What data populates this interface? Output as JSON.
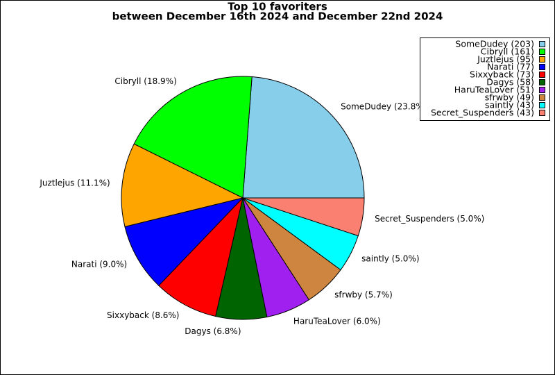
{
  "chart_data": {
    "type": "pie",
    "title": "Top 10 favoriters",
    "subtitle": "between December 16th 2024 and December 22nd 2024",
    "categories": [
      "SomeDudey",
      "Cibryll",
      "Juztlejus",
      "Narati",
      "Sixxyback",
      "Dagys",
      "HaruTeaLover",
      "sfrwby",
      "saintly",
      "Secret_Suspenders"
    ],
    "values": [
      203,
      161,
      95,
      77,
      73,
      58,
      51,
      49,
      43,
      43
    ],
    "value_labels": [
      "SomeDudey (203)",
      "Cibryll (161)",
      "Juztlejus (95)",
      "Narati (77)",
      "Sixxyback (73)",
      "Dagys (58)",
      "HaruTeaLover (51)",
      "sfrwby (49)",
      "saintly (43)",
      "Secret_Suspenders (43)"
    ],
    "slice_labels": [
      "SomeDudey (23.8%)",
      "Cibryll (18.9%)",
      "Juztlejus (11.1%)",
      "Narati (9.0%)",
      "Sixxyback (8.6%)",
      "Dagys (6.8%)",
      "HaruTeaLover (6.0%)",
      "sfrwby (5.7%)",
      "saintly (5.0%)",
      "Secret_Suspenders (5.0%)"
    ],
    "colors": [
      "#87ceeb",
      "#00ff00",
      "#ffa500",
      "#0000ff",
      "#ff0000",
      "#006400",
      "#a020f0",
      "#cd853f",
      "#00ffff",
      "#fa8072"
    ],
    "legend": "upper right"
  }
}
